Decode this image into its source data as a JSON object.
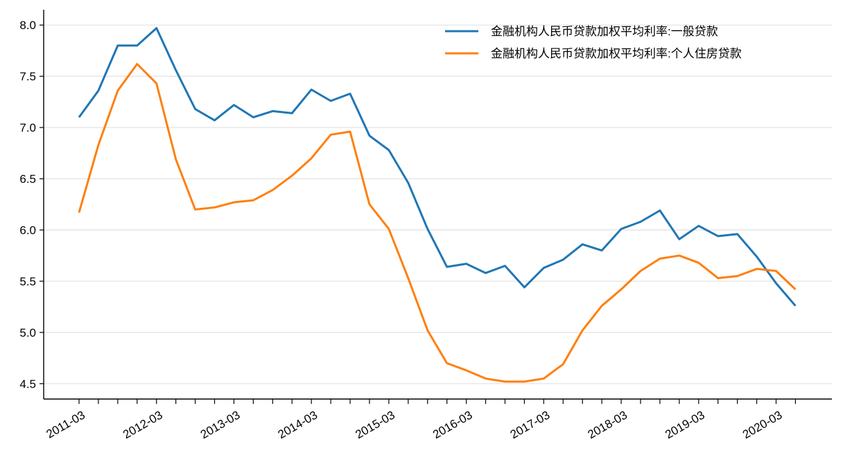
{
  "chart_data": {
    "type": "line",
    "title": "",
    "xlabel": "",
    "ylabel": "",
    "ylim": [
      4.35,
      8.15
    ],
    "yticks": [
      4.5,
      5.0,
      5.5,
      6.0,
      6.5,
      7.0,
      7.5,
      8.0
    ],
    "ytick_labels": [
      "4.5",
      "5.0",
      "5.5",
      "6.0",
      "6.5",
      "7.0",
      "7.5",
      "8.0"
    ],
    "grid": "horizontal",
    "legend_position": "top-right",
    "x": [
      "2011-03",
      "2011-06",
      "2011-09",
      "2011-12",
      "2012-03",
      "2012-06",
      "2012-09",
      "2012-12",
      "2013-03",
      "2013-06",
      "2013-09",
      "2013-12",
      "2014-03",
      "2014-06",
      "2014-09",
      "2014-12",
      "2015-03",
      "2015-06",
      "2015-09",
      "2015-12",
      "2016-03",
      "2016-06",
      "2016-09",
      "2016-12",
      "2017-03",
      "2017-06",
      "2017-09",
      "2017-12",
      "2018-03",
      "2018-06",
      "2018-09",
      "2018-12",
      "2019-03",
      "2019-06",
      "2019-09",
      "2019-12",
      "2020-03",
      "2020-06"
    ],
    "xtick_labels": [
      "2011-03",
      "2012-03",
      "2013-03",
      "2014-03",
      "2015-03",
      "2016-03",
      "2017-03",
      "2018-03",
      "2019-03",
      "2020-03"
    ],
    "series": [
      {
        "name": "金融机构人民币贷款加权平均利率:一般贷款",
        "color": "#1f77b4",
        "values": [
          7.1,
          7.36,
          7.8,
          7.8,
          7.97,
          7.56,
          7.18,
          7.07,
          7.22,
          7.1,
          7.16,
          7.14,
          7.37,
          7.26,
          7.33,
          6.92,
          6.78,
          6.46,
          6.01,
          5.64,
          5.67,
          5.58,
          5.65,
          5.44,
          5.63,
          5.71,
          5.86,
          5.8,
          6.01,
          6.08,
          6.19,
          5.91,
          6.04,
          5.94,
          5.96,
          5.74,
          5.48,
          5.26
        ]
      },
      {
        "name": "金融机构人民币贷款加权平均利率:个人住房贷款",
        "color": "#ff7f0e",
        "values": [
          6.17,
          6.83,
          7.36,
          7.62,
          7.43,
          6.69,
          6.2,
          6.22,
          6.27,
          6.29,
          6.39,
          6.53,
          6.7,
          6.93,
          6.96,
          6.25,
          6.01,
          5.53,
          5.02,
          4.7,
          4.63,
          4.55,
          4.52,
          4.52,
          4.55,
          4.69,
          5.02,
          5.26,
          5.42,
          5.6,
          5.72,
          5.75,
          5.68,
          5.53,
          5.55,
          5.62,
          5.6,
          5.42
        ]
      }
    ]
  }
}
